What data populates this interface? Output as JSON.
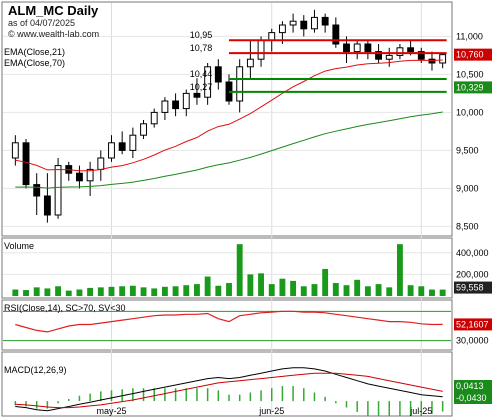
{
  "chart_data": {
    "type": "candlestick",
    "title": "ALM_MC Daily",
    "subtitle": "as of 04/07/2025",
    "watermark": "© www.wealth-lab.com",
    "x_labels": [
      "may-25",
      "jun-25",
      "jul-25"
    ],
    "price_panel": {
      "ylim": [
        8400,
        11400
      ],
      "ticks": [
        "8,500",
        "9,000",
        "9,500",
        "10,000",
        "10,500",
        "11,000"
      ],
      "tick_values": [
        8500,
        9000,
        9500,
        10000,
        10500,
        11000
      ],
      "legend": [
        "EMA(Close,21)",
        "EMA(Close,70)"
      ],
      "ema21_color": "#e01010",
      "ema70_color": "#1a8a1a",
      "up_color": "#ffffff",
      "down_color": "#000000",
      "levels": [
        {
          "label": "10,95",
          "value": 10950,
          "color": "#dd0000"
        },
        {
          "label": "10,78",
          "value": 10780,
          "color": "#dd0000"
        },
        {
          "label": "10,44",
          "value": 10440,
          "color": "#008800"
        },
        {
          "label": "10,27",
          "value": 10270,
          "color": "#008800"
        }
      ],
      "last_close_badge": {
        "text": "10,760",
        "value": 10760,
        "color": "#cc0000"
      },
      "ema70_badge": {
        "text": "10,329",
        "value": 10329,
        "color": "#1a8a1a"
      },
      "candles": [
        [
          9400,
          9700,
          9300,
          9600
        ],
        [
          9600,
          9650,
          9000,
          9050
        ],
        [
          9050,
          9200,
          8650,
          8900
        ],
        [
          8900,
          9200,
          8550,
          8650
        ],
        [
          8650,
          9400,
          8600,
          9300
        ],
        [
          9300,
          9350,
          9100,
          9200
        ],
        [
          9200,
          9300,
          9000,
          9100
        ],
        [
          9100,
          9350,
          8900,
          9250
        ],
        [
          9250,
          9500,
          9100,
          9400
        ],
        [
          9400,
          9700,
          9350,
          9600
        ],
        [
          9600,
          9750,
          9450,
          9500
        ],
        [
          9500,
          9800,
          9400,
          9700
        ],
        [
          9700,
          9900,
          9650,
          9850
        ],
        [
          9850,
          10050,
          9800,
          10000
        ],
        [
          10000,
          10200,
          9900,
          10150
        ],
        [
          10150,
          10250,
          9950,
          10050
        ],
        [
          10050,
          10300,
          9950,
          10250
        ],
        [
          10250,
          10450,
          10100,
          10200
        ],
        [
          10200,
          10650,
          10100,
          10600
        ],
        [
          10600,
          10700,
          10300,
          10400
        ],
        [
          10400,
          10500,
          10100,
          10150
        ],
        [
          10150,
          10700,
          10000,
          10600
        ],
        [
          10600,
          10950,
          10450,
          10700
        ],
        [
          10700,
          11000,
          10600,
          10950
        ],
        [
          10950,
          11100,
          10800,
          11050
        ],
        [
          11050,
          11200,
          10900,
          11150
        ],
        [
          11150,
          11300,
          11050,
          11200
        ],
        [
          11200,
          11280,
          11000,
          11100
        ],
        [
          11100,
          11350,
          11050,
          11250
        ],
        [
          11250,
          11300,
          11050,
          11150
        ],
        [
          11150,
          11250,
          10850,
          10900
        ],
        [
          10900,
          11000,
          10650,
          10800
        ],
        [
          10800,
          10950,
          10700,
          10900
        ],
        [
          10900,
          10950,
          10700,
          10800
        ],
        [
          10800,
          10900,
          10650,
          10700
        ],
        [
          10700,
          10850,
          10600,
          10750
        ],
        [
          10750,
          10900,
          10700,
          10850
        ],
        [
          10850,
          10950,
          10750,
          10800
        ],
        [
          10800,
          10850,
          10650,
          10700
        ],
        [
          10700,
          10800,
          10550,
          10650
        ],
        [
          10650,
          10780,
          10580,
          10760
        ]
      ]
    },
    "volume_panel": {
      "label": "Volume",
      "ylim": [
        0,
        500000
      ],
      "ticks": [
        "200,000",
        "400,000"
      ],
      "tick_values": [
        200000,
        400000
      ],
      "color": "#1a9a1a",
      "last_badge": {
        "text": "59,558",
        "value": 59558,
        "color": "#222222"
      },
      "values": [
        60000,
        55000,
        80000,
        70000,
        90000,
        50000,
        60000,
        75000,
        80000,
        85000,
        90000,
        95000,
        80000,
        70000,
        85000,
        90000,
        100000,
        110000,
        180000,
        95000,
        120000,
        480000,
        200000,
        210000,
        110000,
        160000,
        140000,
        90000,
        110000,
        250000,
        120000,
        100000,
        150000,
        90000,
        110000,
        80000,
        480000,
        100000,
        90000,
        60000,
        59558
      ]
    },
    "rsi_panel": {
      "label": "RSI(Close,14), SC>70, SV<30",
      "ylim": [
        20,
        80
      ],
      "ticks": [
        "30,0000"
      ],
      "tick_values": [
        30
      ],
      "bands": [
        30,
        70
      ],
      "color": "#e02020",
      "last_badge": {
        "text": "52,1607",
        "value": 52.1607,
        "color": "#cc0000"
      },
      "values": [
        52,
        48,
        44,
        42,
        46,
        50,
        52,
        52,
        54,
        56,
        58,
        60,
        62,
        64,
        65,
        65,
        66,
        66,
        67,
        60,
        56,
        64,
        66,
        68,
        69,
        70,
        70,
        69,
        69,
        68,
        66,
        64,
        62,
        60,
        58,
        56,
        56,
        55,
        53,
        52,
        52.1607
      ]
    },
    "macd_panel": {
      "label": "MACD(12,26,9)",
      "ylim": [
        -0.12,
        0.42
      ],
      "badges": [
        {
          "text": "0,0413",
          "value": 0.0413,
          "color": "#1a8a1a"
        },
        {
          "text": "-0,0430",
          "value": -0.043,
          "color": "#1a8a1a"
        }
      ],
      "hist_color": "#33aa33",
      "macd_color": "#000000",
      "signal_color": "#cc0000",
      "macd": [
        -0.05,
        -0.06,
        -0.08,
        -0.09,
        -0.07,
        -0.05,
        -0.03,
        -0.01,
        0.01,
        0.03,
        0.05,
        0.07,
        0.09,
        0.11,
        0.13,
        0.15,
        0.17,
        0.19,
        0.21,
        0.22,
        0.21,
        0.22,
        0.24,
        0.26,
        0.28,
        0.3,
        0.31,
        0.31,
        0.3,
        0.28,
        0.25,
        0.22,
        0.19,
        0.16,
        0.14,
        0.12,
        0.1,
        0.08,
        0.06,
        0.05,
        0.0413
      ],
      "signal": [
        -0.03,
        -0.035,
        -0.045,
        -0.055,
        -0.06,
        -0.06,
        -0.055,
        -0.045,
        -0.035,
        -0.02,
        -0.005,
        0.01,
        0.03,
        0.05,
        0.07,
        0.09,
        0.11,
        0.13,
        0.15,
        0.17,
        0.18,
        0.19,
        0.2,
        0.21,
        0.22,
        0.23,
        0.24,
        0.25,
        0.26,
        0.26,
        0.26,
        0.25,
        0.24,
        0.23,
        0.21,
        0.19,
        0.17,
        0.15,
        0.13,
        0.11,
        0.09
      ]
    }
  }
}
